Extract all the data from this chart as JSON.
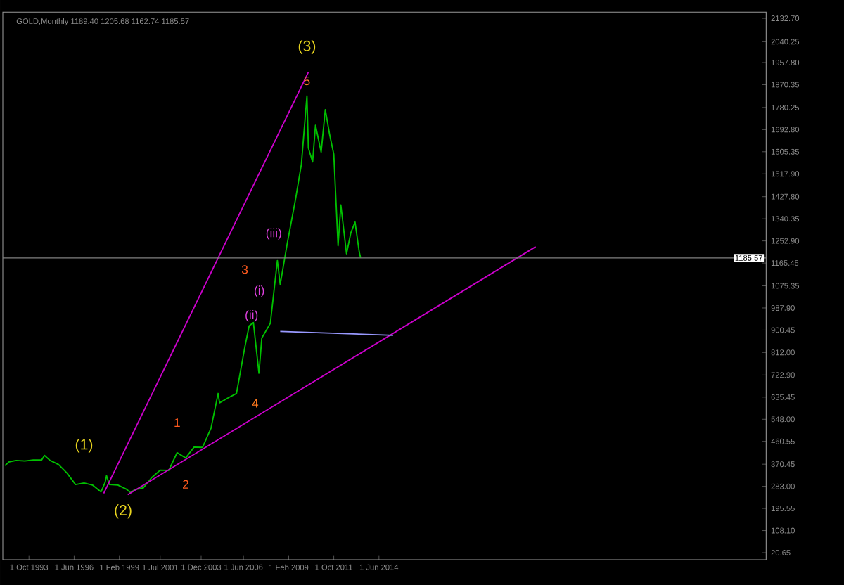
{
  "chart_data": {
    "type": "line",
    "title": "GOLD,Monthly  1189.40 1205.68 1162.74 1185.57",
    "xlim": [
      "1992-03-16",
      "2037-04-11"
    ],
    "tick_labels": "xy",
    "grid": false,
    "xticks": [
      {
        "value": "1993-10-01",
        "label": "1 Oct 1993"
      },
      {
        "value": "1996-06-01",
        "label": "1 Jun 1996"
      },
      {
        "value": "1999-02-01",
        "label": "1 Feb 1999"
      },
      {
        "value": "2001-07-01",
        "label": "1 Jul 2001"
      },
      {
        "value": "2003-12-01",
        "label": "1 Dec 2003"
      },
      {
        "value": "2006-06-01",
        "label": "1 Jun 2006"
      },
      {
        "value": "2009-02-01",
        "label": "1 Feb 2009"
      },
      {
        "value": "2011-10-01",
        "label": "1 Oct 2011"
      },
      {
        "value": "2014-06-01",
        "label": "1 Jun 2014"
      }
    ],
    "ylim": [
      -7,
      2157
    ],
    "yticks": [
      {
        "value": 20.65,
        "label": "20.65"
      },
      {
        "value": 108.1,
        "label": "108.10"
      },
      {
        "value": 195.55,
        "label": "195.55"
      },
      {
        "value": 283,
        "label": "283.00"
      },
      {
        "value": 370.45,
        "label": "370.45"
      },
      {
        "value": 460.55,
        "label": "460.55"
      },
      {
        "value": 548,
        "label": "548.00"
      },
      {
        "value": 635.45,
        "label": "635.45"
      },
      {
        "value": 722.9,
        "label": "722.90"
      },
      {
        "value": 812,
        "label": "812.00"
      },
      {
        "value": 900.45,
        "label": "900.45"
      },
      {
        "value": 987.9,
        "label": "987.90"
      },
      {
        "value": 1075.35,
        "label": "1075.35"
      },
      {
        "value": 1165.45,
        "label": "1165.45"
      },
      {
        "value": 1252.9,
        "label": "1252.90"
      },
      {
        "value": 1340.35,
        "label": "1340.35"
      },
      {
        "value": 1427.8,
        "label": "1427.80"
      },
      {
        "value": 1517.9,
        "label": "1517.90"
      },
      {
        "value": 1605.35,
        "label": "1605.35"
      },
      {
        "value": 1692.8,
        "label": "1692.80"
      },
      {
        "value": 1780.25,
        "label": "1780.25"
      },
      {
        "value": 1870.35,
        "label": "1870.35"
      },
      {
        "value": 1957.8,
        "label": "1957.80"
      },
      {
        "value": 2040.25,
        "label": "2040.25"
      },
      {
        "value": 2132.7,
        "label": "2132.70"
      }
    ],
    "series": [
      {
        "color": "#00c000",
        "x": [
          "1992-05",
          "1992-08",
          "1993-01",
          "1993-07",
          "1994-01",
          "1994-07",
          "1994-09",
          "1995-01",
          "1995-07",
          "1996-01",
          "1996-07",
          "1997-01",
          "1997-07",
          "1998-01",
          "1998-04",
          "1998-05",
          "1998-07",
          "1999-01",
          "1999-07",
          "1999-10",
          "2000-01",
          "2000-07",
          "2001-01",
          "2001-07",
          "2002-01",
          "2002-07",
          "2003-01",
          "2003-07",
          "2004-01",
          "2004-07",
          "2004-12",
          "2005-01",
          "2005-07",
          "2006-01",
          "2006-07",
          "2006-10",
          "2007-01",
          "2007-05",
          "2007-07",
          "2008-01",
          "2008-06",
          "2008-08",
          "2009-01",
          "2009-07",
          "2009-11",
          "2010-03",
          "2010-04",
          "2010-07",
          "2010-09",
          "2011-01",
          "2011-04",
          "2011-07",
          "2011-10",
          "2012-01",
          "2012-03",
          "2012-07",
          "2012-10",
          "2013-01",
          "2013-04",
          "2013-05"
        ],
        "values": [
          365,
          380,
          385,
          383,
          387,
          387,
          405,
          385,
          369,
          335,
          290,
          296,
          288,
          261,
          299,
          325,
          290,
          288,
          272,
          258,
          270,
          277,
          318,
          347,
          346,
          416,
          395,
          438,
          437,
          513,
          650,
          613,
          632,
          650,
          834,
          917,
          930,
          730,
          869,
          927,
          1175,
          1081,
          1244,
          1421,
          1556,
          1826,
          1620,
          1565,
          1710,
          1604,
          1772,
          1675,
          1595,
          1234,
          1395,
          1202,
          1284,
          1327,
          1210,
          1186
        ]
      },
      {
        "color": "#cc00cc",
        "x": [
          "1998-03",
          "2010-04"
        ],
        "values": [
          255,
          1920
        ]
      },
      {
        "color": "#cc00cc",
        "x": [
          "1999-08",
          "2023-09"
        ],
        "values": [
          250,
          1230
        ]
      },
      {
        "color": "#9999ff",
        "x": [
          "2008-08",
          "2015-04"
        ],
        "values": [
          895,
          880
        ]
      }
    ],
    "ref_lines": [
      {
        "axis": "y",
        "value": 1185.57,
        "label": "1185.57",
        "color": "#808080"
      }
    ],
    "annotations": [
      {
        "text": "(1)",
        "x": "1998-05",
        "y": 325
      },
      {
        "text": "(2)",
        "x": "1999-10",
        "y": 258
      },
      {
        "text": "1",
        "x": "2002-07",
        "y": 416
      },
      {
        "text": "2",
        "x": "2003-01",
        "y": 395
      },
      "3",
      {
        "text": "4",
        "x": "2007-05",
        "y": 730
      },
      {
        "text": "5",
        "x": "2010-03",
        "y": 1826
      },
      {
        "text": "(3)",
        "x": "2010-03",
        "y": 1826
      },
      "(i)",
      {
        "text": "(ii)",
        "x": "2008-01",
        "y": 927
      },
      "(iii)"
    ]
  }
}
